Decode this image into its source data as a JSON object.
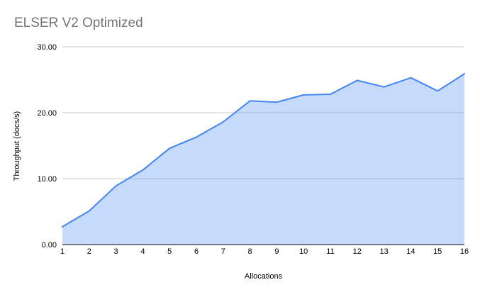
{
  "chart_data": {
    "type": "area",
    "title": "ELSER V2 Optimized",
    "xlabel": "Allocations",
    "ylabel": "Throughput (docs/s)",
    "categories": [
      "1",
      "2",
      "3",
      "4",
      "5",
      "6",
      "7",
      "8",
      "9",
      "10",
      "11",
      "12",
      "13",
      "14",
      "15",
      "16"
    ],
    "series": [
      {
        "name": "Throughput (docs/s)",
        "values": [
          2.7,
          5.1,
          8.9,
          11.3,
          14.6,
          16.3,
          18.6,
          21.8,
          21.6,
          22.7,
          22.8,
          24.9,
          23.9,
          25.3,
          23.3,
          25.9
        ]
      }
    ],
    "ylim": [
      0,
      30
    ],
    "yticks": [
      0,
      10,
      20,
      30
    ],
    "ytick_labels": [
      "0.00",
      "10.00",
      "20.00",
      "30.00"
    ],
    "grid": true,
    "legend_position": "none",
    "colors": {
      "line": "#4285f4",
      "fill": "rgba(66,133,244,0.30)",
      "gridline": "#cccccc",
      "baseline": "#333333",
      "title": "#757575",
      "axis_text": "#000000"
    }
  }
}
